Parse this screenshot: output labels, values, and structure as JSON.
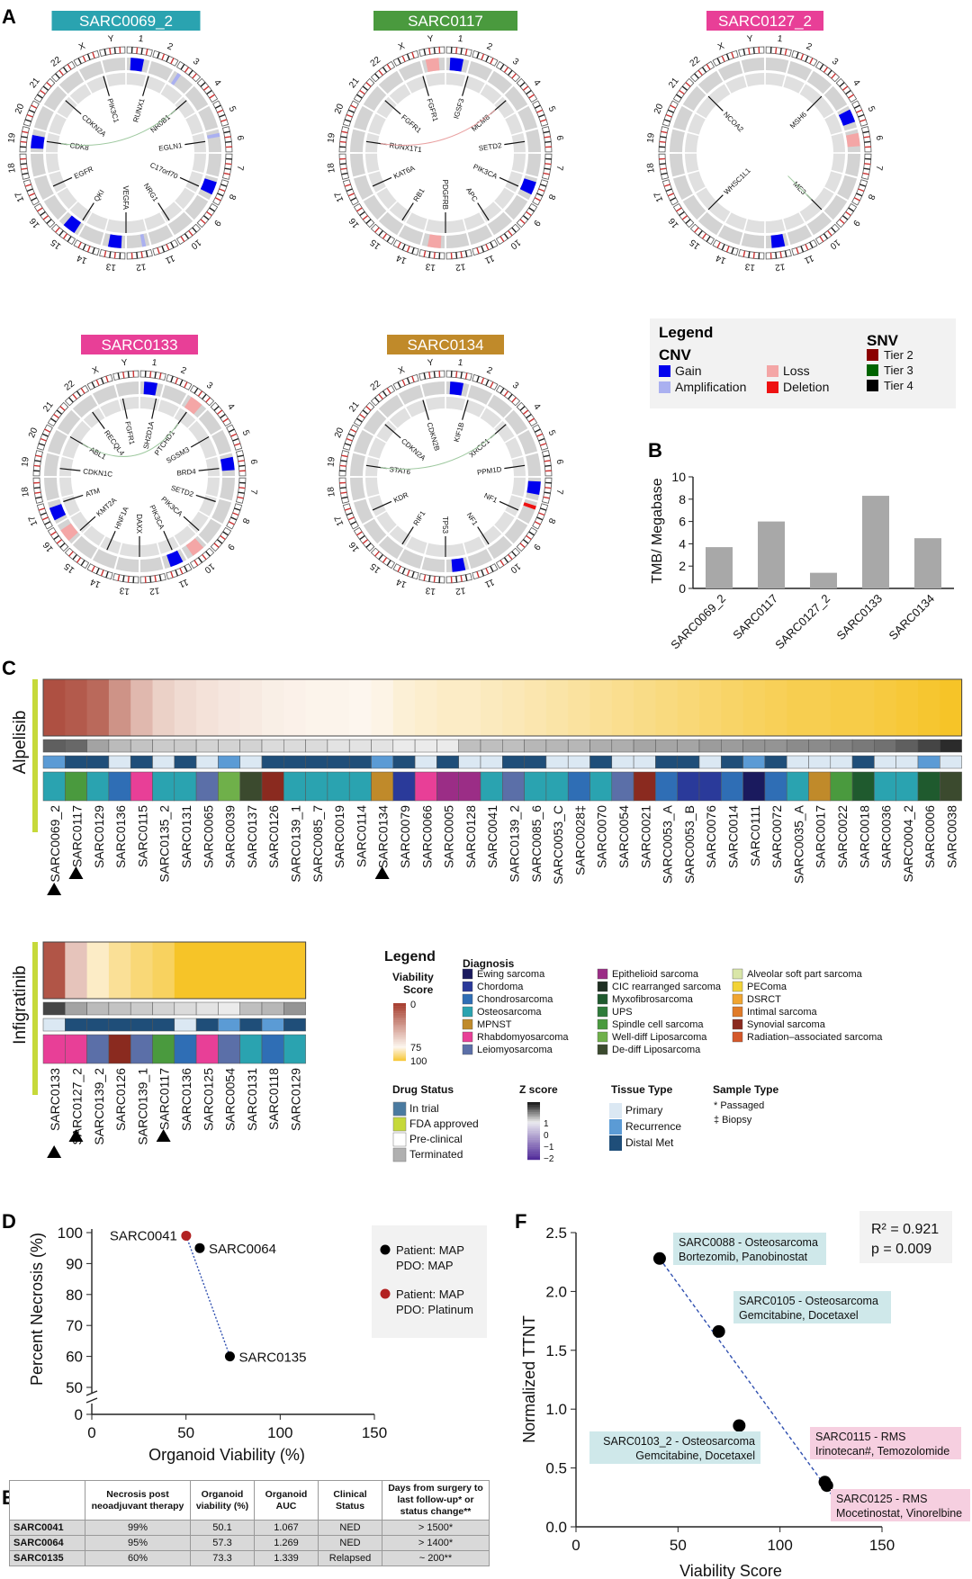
{
  "panels": {
    "a": "A",
    "b": "B",
    "c": "C",
    "d": "D",
    "e": "E",
    "f": "F"
  },
  "circos": {
    "chromosomes": [
      "1",
      "2",
      "3",
      "4",
      "5",
      "6",
      "7",
      "8",
      "9",
      "10",
      "11",
      "12",
      "13",
      "14",
      "15",
      "16",
      "17",
      "18",
      "19",
      "20",
      "21",
      "22",
      "X",
      "Y"
    ],
    "samples": [
      {
        "name": "SARC0069_2",
        "color": "#2aa3b0",
        "genes": [
          "RUNX1",
          "NR0B1",
          "EGLN1",
          "C17orf70",
          "NRG1",
          "VEGFA",
          "QKI",
          "EGFR",
          "CDK8",
          "CDKN2A",
          "PIK3C1"
        ],
        "cnv": [
          {
            "chrom": "19",
            "type": "gain"
          },
          {
            "chrom": "1",
            "type": "gain"
          },
          {
            "chrom": "8",
            "type": "gain"
          },
          {
            "chrom": "15",
            "type": "gain"
          },
          {
            "chrom": "13",
            "type": "gain"
          },
          {
            "chrom": "6",
            "type": "amplification"
          },
          {
            "chrom": "12",
            "type": "amplification"
          },
          {
            "chrom": "3",
            "type": "amplification"
          }
        ]
      },
      {
        "name": "SARC0117",
        "color": "#4a9a3e",
        "genes": [
          "IGSF3",
          "MCM8",
          "SETD2",
          "PIK3CA",
          "APC",
          "PDGFRB",
          "RB1",
          "KAT6A",
          "RUNX1T1",
          "FGFR1",
          "FGFR1"
        ],
        "cnv": [
          {
            "chrom": "1",
            "type": "gain"
          },
          {
            "chrom": "Y",
            "type": "loss"
          },
          {
            "chrom": "13",
            "type": "loss"
          },
          {
            "chrom": "8",
            "type": "gain"
          }
        ]
      },
      {
        "name": "SARC0127_2",
        "color": "#e83f97",
        "genes": [
          "MSH6",
          "ME3",
          "WHSC1L1",
          "NCOA2"
        ],
        "cnv": [
          {
            "chrom": "5",
            "type": "gain"
          },
          {
            "chrom": "6",
            "type": "loss"
          },
          {
            "chrom": "12",
            "type": "gain"
          }
        ]
      },
      {
        "name": "SARC0133",
        "color": "#e83f97",
        "genes": [
          "SH2D1A",
          "PTCHD1",
          "SGSM3",
          "BRD4",
          "SETD2",
          "PIK3CA",
          "PIK3CA",
          "DAXX",
          "HNF1A",
          "KMT2A",
          "ATM",
          "CDKN1C",
          "ABL1",
          "RECQL4",
          "FGFR1"
        ],
        "cnv": [
          {
            "chrom": "1",
            "type": "gain"
          },
          {
            "chrom": "16",
            "type": "loss"
          },
          {
            "chrom": "3",
            "type": "loss"
          },
          {
            "chrom": "11",
            "type": "gain"
          },
          {
            "chrom": "10",
            "type": "loss"
          },
          {
            "chrom": "6",
            "type": "gain"
          },
          {
            "chrom": "17",
            "type": "gain"
          }
        ]
      },
      {
        "name": "SARC0134",
        "color": "#c08a2a",
        "genes": [
          "KIF1B",
          "XRCC1",
          "PPM1D",
          "NF1",
          "NF1",
          "TP53",
          "RIF1",
          "KDR",
          "STAT6",
          "CDKN2A",
          "CDKN2B"
        ],
        "cnv": [
          {
            "chrom": "1",
            "type": "gain"
          },
          {
            "chrom": "7",
            "type": "gain"
          },
          {
            "chrom": "8",
            "type": "deletion"
          },
          {
            "chrom": "12",
            "type": "gain"
          }
        ]
      }
    ]
  },
  "legend_a": {
    "title": "Legend",
    "cnv_title": "CNV",
    "snv_title": "SNV",
    "items": [
      {
        "label": "Gain",
        "color": "#0000ee"
      },
      {
        "label": "Amplification",
        "color": "#aab0f0"
      },
      {
        "label": "Loss",
        "color": "#f4a6a6"
      },
      {
        "label": "Deletion",
        "color": "#ee1111"
      }
    ],
    "snv_items": [
      {
        "label": "Tier 2",
        "color": "#8b0000"
      },
      {
        "label": "Tier 3",
        "color": "#006400"
      },
      {
        "label": "Tier 4",
        "color": "#000000"
      }
    ]
  },
  "chart_data": [
    {
      "type": "bar",
      "id": "tmb",
      "categories": [
        "SARC0069_2",
        "SARC0117",
        "SARC0127_2",
        "SARC0133",
        "SARC0134"
      ],
      "values": [
        3.7,
        6.0,
        1.4,
        8.3,
        4.5
      ],
      "ylabel": "TMB/ Megabase",
      "ylim": [
        0,
        10
      ],
      "yticks": [
        0,
        2,
        4,
        6,
        8,
        10
      ],
      "bar_color": "#a8a8a8"
    },
    {
      "type": "heatmap",
      "id": "alpelisib",
      "drug": "Alpelisib",
      "samples": [
        "SARC0069_2",
        "SARC0117",
        "SARC0129",
        "SARC0136",
        "SARC0115",
        "SARC0135_2",
        "SARC0131",
        "SARC0065",
        "SARC0039",
        "SARC0137",
        "SARC0126",
        "SARC0139_1",
        "SARC0085_7",
        "SARC0019",
        "SARC0114",
        "SARC0134",
        "SARC0079",
        "SARC0066",
        "SARC0005",
        "SARC0128",
        "SARC0041",
        "SARC0139_2",
        "SARC0085_6",
        "SARC0053_C",
        "SARC0028‡",
        "SARC0070",
        "SARC0054",
        "SARC0021",
        "SARC0053_A",
        "SARC0053_B",
        "SARC0076",
        "SARC0014",
        "SARC0111",
        "SARC0072",
        "SARC0035_A",
        "SARC0017",
        "SARC0022",
        "SARC0018",
        "SARC0036",
        "SARC0004_2",
        "SARC0006",
        "SARC0038"
      ],
      "marked": [
        "SARC0069_2",
        "SARC0117",
        "SARC0134"
      ],
      "viability": [
        8,
        12,
        18,
        35,
        50,
        60,
        64,
        67,
        69,
        70,
        72,
        73,
        74,
        74,
        75,
        76,
        78,
        79,
        80,
        80,
        81,
        82,
        83,
        84,
        85,
        86,
        87,
        88,
        89,
        90,
        91,
        92,
        93,
        94,
        95,
        95,
        96,
        96,
        97,
        98,
        99,
        100
      ],
      "zscore": [
        -1.2,
        -1.1,
        0.9,
        0.6,
        0.5,
        0.4,
        0.4,
        0.3,
        0.3,
        0.3,
        0.2,
        0.2,
        0.2,
        0.1,
        0.1,
        0.1,
        0.0,
        0.0,
        0.0,
        -0.1,
        -0.1,
        -0.1,
        -0.2,
        -0.2,
        -0.2,
        -0.3,
        -0.3,
        -0.4,
        -0.4,
        -0.4,
        -0.5,
        -0.5,
        -0.6,
        -0.6,
        -0.7,
        -0.7,
        -0.8,
        -0.9,
        -1.0,
        -1.2,
        -1.5,
        -1.8
      ],
      "tissue": [
        "Recurrence",
        "Distal Met",
        "Distal Met",
        "Primary",
        "Distal Met",
        "Primary",
        "Distal Met",
        "Primary",
        "Recurrence",
        "Primary",
        "Distal Met",
        "Distal Met",
        "Distal Met",
        "Distal Met",
        "Distal Met",
        "Recurrence",
        "Distal Met",
        "Primary",
        "Distal Met",
        "Primary",
        "Primary",
        "Distal Met",
        "Distal Met",
        "Primary",
        "Primary",
        "Distal Met",
        "Primary",
        "Primary",
        "Distal Met",
        "Distal Met",
        "Primary",
        "Distal Met",
        "Recurrence",
        "Distal Met",
        "Primary",
        "Primary",
        "Primary",
        "Distal Met",
        "Primary",
        "Primary",
        "Recurrence",
        "Primary"
      ],
      "diagnosis": [
        "Osteosarcoma",
        "Spindle cell sarcoma",
        "Osteosarcoma",
        "Chondrosarcoma",
        "Rhabdomyosarcoma",
        "Osteosarcoma",
        "Osteosarcoma",
        "Leiomyosarcoma",
        "Well-diff Liposarcoma",
        "De-diff Liposarcoma",
        "Synovial sarcoma",
        "Osteosarcoma",
        "Osteosarcoma",
        "Osteosarcoma",
        "Osteosarcoma",
        "MPNST",
        "Chordoma",
        "Rhabdomyosarcoma",
        "Epithelioid sarcoma",
        "Epithelioid sarcoma",
        "Osteosarcoma",
        "Leiomyosarcoma",
        "Osteosarcoma",
        "Osteosarcoma",
        "Chondrosarcoma",
        "Osteosarcoma",
        "Leiomyosarcoma",
        "Synovial sarcoma",
        "Chondrosarcoma",
        "Chordoma",
        "Chordoma",
        "Chondrosarcoma",
        "Ewing sarcoma",
        "Chondrosarcoma",
        "Osteosarcoma",
        "MPNST",
        "Spindle cell sarcoma",
        "Myxofibrosarcoma",
        "Osteosarcoma",
        "Osteosarcoma",
        "Myxofibrosarcoma",
        "De-diff Liposarcoma"
      ]
    },
    {
      "type": "heatmap",
      "id": "infigratinib",
      "drug": "Infigratinib",
      "samples": [
        "SARC0133",
        "SARC0127_2",
        "SARC0139_2",
        "SARC0126",
        "SARC0139_1",
        "SARC0117",
        "SARC0136",
        "SARC0125",
        "SARC0054",
        "SARC0131",
        "SARC0118",
        "SARC0129"
      ],
      "marked": [
        "SARC0133",
        "SARC0127_2",
        "SARC0117"
      ],
      "viability": [
        10,
        55,
        80,
        86,
        90,
        93,
        100,
        100,
        100,
        100,
        100,
        100
      ],
      "zscore": [
        -1.5,
        0.9,
        0.6,
        0.5,
        0.4,
        0.3,
        0.2,
        0.1,
        0.0,
        -0.1,
        -0.2,
        -0.6
      ],
      "tissue": [
        "Primary",
        "Distal Met",
        "Distal Met",
        "Distal Met",
        "Distal Met",
        "Distal Met",
        "Primary",
        "Distal Met",
        "Recurrence",
        "Distal Met",
        "Recurrence",
        "Distal Met"
      ],
      "diagnosis": [
        "Rhabdomyosarcoma",
        "Rhabdomyosarcoma",
        "Leiomyosarcoma",
        "Synovial sarcoma",
        "Leiomyosarcoma",
        "Spindle cell sarcoma",
        "Chondrosarcoma",
        "Rhabdomyosarcoma",
        "Leiomyosarcoma",
        "Osteosarcoma",
        "Chondrosarcoma",
        "Osteosarcoma"
      ]
    },
    {
      "type": "scatter",
      "id": "necrosis",
      "xlabel": "Organoid Viability (%)",
      "ylabel": "Percent Necrosis (%)",
      "xlim": [
        0,
        150
      ],
      "xticks": [
        0,
        50,
        100,
        150
      ],
      "yticks": [
        50,
        60,
        70,
        80,
        90,
        100
      ],
      "ybreak_tick": 0,
      "points": [
        {
          "label": "SARC0041",
          "x": 50.1,
          "y": 99,
          "group": "Patient: MAP PDO: Platinum"
        },
        {
          "label": "SARC0064",
          "x": 57.3,
          "y": 95,
          "group": "Patient: MAP PDO: MAP"
        },
        {
          "label": "SARC0135",
          "x": 73.3,
          "y": 60,
          "group": "Patient: MAP PDO: MAP"
        }
      ],
      "legend": [
        {
          "line1": "Patient: MAP",
          "line2": "PDO: MAP",
          "color": "#000000"
        },
        {
          "line1": "Patient: MAP",
          "line2": "PDO: Platinum",
          "color": "#b22222"
        }
      ]
    },
    {
      "type": "scatter",
      "id": "ttnt",
      "xlabel": "Viability Score",
      "ylabel": "Normalized TTNT",
      "xlim": [
        0,
        150
      ],
      "ylim": [
        0,
        2.5
      ],
      "xticks": [
        0,
        50,
        100,
        150
      ],
      "yticks": [
        0.0,
        0.5,
        1.0,
        1.5,
        2.0,
        2.5
      ],
      "stats": [
        "R² = 0.921",
        "p = 0.009"
      ],
      "points": [
        {
          "x": 41,
          "y": 2.28,
          "line1": "SARC0088 - Osteosarcoma",
          "line2": "Bortezomib, Panobinostat",
          "box": "#cfe8ea"
        },
        {
          "x": 70,
          "y": 1.66,
          "line1": "SARC0105 - Osteosarcoma",
          "line2": "Gemcitabine, Docetaxel",
          "box": "#cfe8ea"
        },
        {
          "x": 80,
          "y": 0.86,
          "line1": "SARC0103_2 - Osteosarcoma",
          "line2": "Gemcitabine, Docetaxel",
          "box": "#cfe8ea"
        },
        {
          "x": 122,
          "y": 0.38,
          "line1": "SARC0115 - RMS",
          "line2": "Irinotecan#, Temozolomide",
          "box": "#f6cfe0"
        },
        {
          "x": 123,
          "y": 0.35,
          "line1": "SARC0125 - RMS",
          "line2": "Mocetinostat, Vinorelbine",
          "box": "#f6cfe0"
        }
      ]
    }
  ],
  "legend_c": {
    "title": "Legend",
    "viability_title": "Viability Score",
    "viability_ticks": [
      "0",
      "75",
      "100"
    ],
    "diagnosis_title": "Diagnosis",
    "diagnosis": [
      {
        "label": "Ewing sarcoma",
        "color": "#1a1a5e"
      },
      {
        "label": "Chordoma",
        "color": "#2a3a9a"
      },
      {
        "label": "Chondrosarcoma",
        "color": "#2f6eb5"
      },
      {
        "label": "Osteosarcoma",
        "color": "#2aa3b0"
      },
      {
        "label": "MPNST",
        "color": "#c08a2a"
      },
      {
        "label": "Rhabdomyosarcoma",
        "color": "#e83f97"
      },
      {
        "label": "Leiomyosarcoma",
        "color": "#5b6fa8"
      },
      {
        "label": "Epithelioid sarcoma",
        "color": "#9b2d86"
      },
      {
        "label": "CIC rearranged sarcoma",
        "color": "#1e2e22"
      },
      {
        "label": "Myxofibrosarcoma",
        "color": "#1f5a2e"
      },
      {
        "label": "UPS",
        "color": "#2e7b3a"
      },
      {
        "label": "Spindle cell sarcoma",
        "color": "#4a9a3e"
      },
      {
        "label": "Well-diff Liposarcoma",
        "color": "#6fb04a"
      },
      {
        "label": "De-diff Liposarcoma",
        "color": "#3b4a2e"
      },
      {
        "label": "Alveolar soft part sarcoma",
        "color": "#d9e6a8"
      },
      {
        "label": "PEComa",
        "color": "#f2d338"
      },
      {
        "label": "DSRCT",
        "color": "#f0a531"
      },
      {
        "label": "Intimal sarcoma",
        "color": "#e07b28"
      },
      {
        "label": "Synovial sarcoma",
        "color": "#8a2a1f"
      },
      {
        "label": "Radiation–associated sarcoma",
        "color": "#d4582a"
      }
    ],
    "drug_status_title": "Drug Status",
    "drug_status": [
      {
        "label": "In trial",
        "color": "#4a7aa0"
      },
      {
        "label": "FDA approved",
        "color": "#c6d93a"
      },
      {
        "label": "Pre-clinical",
        "color": "#ffffff"
      },
      {
        "label": "Terminated",
        "color": "#b0b0b0"
      }
    ],
    "zscore_title": "Z score",
    "zscore_ticks": [
      "1",
      "0",
      "−1",
      "−2"
    ],
    "tissue_title": "Tissue Type",
    "tissue": [
      {
        "label": "Primary",
        "color": "#dbe8f3"
      },
      {
        "label": "Recurrence",
        "color": "#5b9bd5"
      },
      {
        "label": "Distal Met",
        "color": "#1f4e79"
      }
    ],
    "sample_title": "Sample Type",
    "sample": [
      "* Passaged",
      "‡ Biopsy"
    ]
  },
  "table_e": {
    "headers": [
      "",
      "Necrosis post neoadjuvant therapy",
      "Organoid viability (%)",
      "Organoid AUC",
      "Clinical Status",
      "Days from surgery to last follow-up* or status change**"
    ],
    "rows": [
      [
        "SARC0041",
        "99%",
        "50.1",
        "1.067",
        "NED",
        "> 1500*"
      ],
      [
        "SARC0064",
        "95%",
        "57.3",
        "1.269",
        "NED",
        "> 1400*"
      ],
      [
        "SARC0135",
        "60%",
        "73.3",
        "1.339",
        "Relapsed",
        "~ 200**"
      ]
    ]
  }
}
